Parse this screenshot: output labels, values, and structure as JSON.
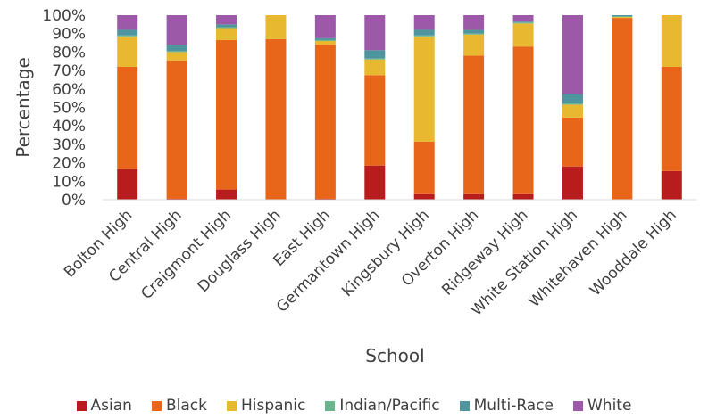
{
  "chart_data": {
    "type": "bar",
    "stacked": true,
    "title": "",
    "xlabel": "School",
    "ylabel": "Percentage",
    "ylim": [
      0,
      100
    ],
    "y_ticks": [
      "0%",
      "10%",
      "20%",
      "30%",
      "40%",
      "50%",
      "60%",
      "70%",
      "80%",
      "90%",
      "100%"
    ],
    "y_tick_values": [
      0,
      10,
      20,
      30,
      40,
      50,
      60,
      70,
      80,
      90,
      100
    ],
    "grid": false,
    "legend_position": "bottom",
    "categories": [
      "Bolton High",
      "Central High",
      "Craigmont High",
      "Douglass High",
      "East High",
      "Germantown High",
      "Kingsbury High",
      "Overton High",
      "Ridgeway High",
      "White Station High",
      "Whitehaven High",
      "Wooddale High"
    ],
    "series": [
      {
        "name": "Asian",
        "color": "#b81c1c",
        "values": [
          16.5,
          0.5,
          5.5,
          0,
          0.5,
          18.5,
          3,
          3,
          3,
          18,
          0,
          15.5
        ]
      },
      {
        "name": "Black",
        "color": "#e8661a",
        "values": [
          55.5,
          75,
          81,
          87,
          83.5,
          49,
          28.5,
          75,
          80,
          26.5,
          98.5,
          56.5
        ]
      },
      {
        "name": "Hispanic",
        "color": "#e8b830",
        "values": [
          16.5,
          4.5,
          6.5,
          13,
          2,
          8.5,
          57,
          11.5,
          12.5,
          7,
          0.5,
          28
        ]
      },
      {
        "name": "Indian/Pacific",
        "color": "#6bb58e",
        "values": [
          0.5,
          0.5,
          0.5,
          0,
          0.5,
          0.5,
          0.5,
          0.5,
          0.5,
          0.5,
          0.5,
          0
        ]
      },
      {
        "name": "Multi-Race",
        "color": "#4f959d",
        "values": [
          3,
          3.5,
          1.5,
          0,
          1,
          4.5,
          3,
          2,
          0.5,
          5,
          0.5,
          0
        ]
      },
      {
        "name": "White",
        "color": "#9b59a8",
        "values": [
          8,
          16,
          5,
          0,
          12.5,
          19,
          8,
          8,
          3.5,
          43,
          0,
          0
        ]
      }
    ]
  }
}
